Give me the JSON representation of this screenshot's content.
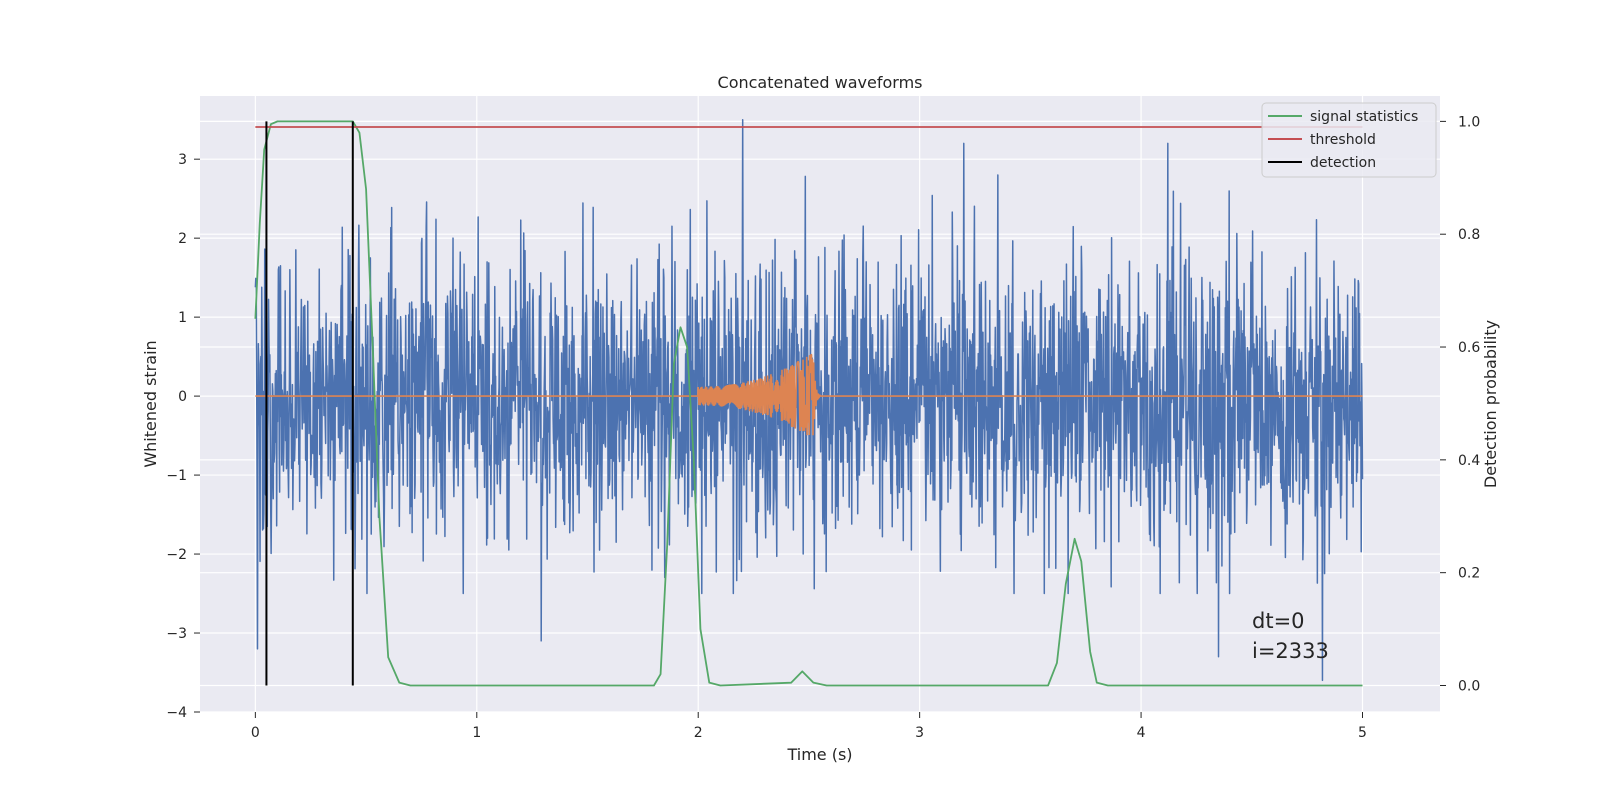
{
  "chart_data": {
    "type": "line",
    "title": "Concatenated waveforms",
    "xlabel": "Time (s)",
    "ylabel": "Whitened strain",
    "y2label": "Detection probability",
    "xlim": [
      -0.25,
      5.35
    ],
    "ylim": [
      -4.0,
      3.8
    ],
    "y2lim": [
      -0.047,
      1.045
    ],
    "xticks": [
      0,
      1,
      2,
      3,
      4,
      5
    ],
    "xtick_labels": [
      "0",
      "1",
      "2",
      "3",
      "4",
      "5"
    ],
    "yticks": [
      -4,
      -3,
      -2,
      -1,
      0,
      1,
      2,
      3
    ],
    "ytick_labels": [
      "−4",
      "−3",
      "−2",
      "−1",
      "0",
      "1",
      "2",
      "3"
    ],
    "y2ticks": [
      0.0,
      0.2,
      0.4,
      0.6,
      0.8,
      1.0
    ],
    "y2tick_labels": [
      "0.0",
      "0.2",
      "0.4",
      "0.6",
      "0.8",
      "1.0"
    ],
    "grid": true,
    "legend_position": "top-right",
    "legend": [
      "signal statistics",
      "threshold",
      "detection"
    ],
    "series": [
      {
        "name": "whitened strain",
        "axis": "left",
        "color": "#4c72b0",
        "kind": "noise",
        "t_range": [
          0,
          5
        ],
        "amplitude_std": 0.9,
        "typical_range": [
          -2.5,
          2.8
        ],
        "extremes": [
          {
            "t": 0.01,
            "y": -3.2
          },
          {
            "t": 1.29,
            "y": -3.1
          },
          {
            "t": 2.2,
            "y": 3.5
          },
          {
            "t": 3.2,
            "y": 3.2
          },
          {
            "t": 4.12,
            "y": 3.2
          },
          {
            "t": 4.82,
            "y": -3.6
          },
          {
            "t": 4.35,
            "y": -3.3
          }
        ]
      },
      {
        "name": "injected waveform",
        "axis": "left",
        "color": "#dd8452",
        "kind": "chirp",
        "t_start": 2.0,
        "t_merger": 2.52,
        "t_end": 2.55,
        "peak_amplitude": 0.55,
        "start_amplitude": 0.12
      },
      {
        "name": "signal statistics",
        "axis": "right",
        "color": "#55a868",
        "points": [
          [
            0.0,
            0.65
          ],
          [
            0.02,
            0.82
          ],
          [
            0.04,
            0.95
          ],
          [
            0.07,
            0.995
          ],
          [
            0.1,
            1.0
          ],
          [
            0.44,
            1.0
          ],
          [
            0.47,
            0.98
          ],
          [
            0.5,
            0.88
          ],
          [
            0.53,
            0.6
          ],
          [
            0.56,
            0.3
          ],
          [
            0.6,
            0.05
          ],
          [
            0.65,
            0.005
          ],
          [
            0.7,
            0.0
          ],
          [
            1.8,
            0.0
          ],
          [
            1.83,
            0.02
          ],
          [
            1.86,
            0.25
          ],
          [
            1.89,
            0.57
          ],
          [
            1.92,
            0.635
          ],
          [
            1.95,
            0.6
          ],
          [
            1.98,
            0.4
          ],
          [
            2.01,
            0.1
          ],
          [
            2.05,
            0.005
          ],
          [
            2.1,
            0.0
          ],
          [
            2.42,
            0.005
          ],
          [
            2.47,
            0.025
          ],
          [
            2.52,
            0.005
          ],
          [
            2.58,
            0.0
          ],
          [
            3.58,
            0.0
          ],
          [
            3.62,
            0.04
          ],
          [
            3.66,
            0.18
          ],
          [
            3.7,
            0.26
          ],
          [
            3.73,
            0.22
          ],
          [
            3.77,
            0.06
          ],
          [
            3.8,
            0.005
          ],
          [
            3.85,
            0.0
          ],
          [
            5.0,
            0.0
          ]
        ]
      },
      {
        "name": "threshold",
        "axis": "right",
        "color": "#c44e52",
        "kind": "hline",
        "value": 0.99,
        "t_range": [
          0,
          5
        ]
      },
      {
        "name": "detection",
        "axis": "right",
        "color": "#000000",
        "kind": "vlines",
        "t": [
          0.05,
          0.44
        ],
        "y_range": [
          0.0,
          1.0
        ]
      }
    ],
    "annotation": {
      "lines": [
        "dt=0",
        "i=2333"
      ],
      "x": 4.5,
      "y": -2.95
    }
  }
}
